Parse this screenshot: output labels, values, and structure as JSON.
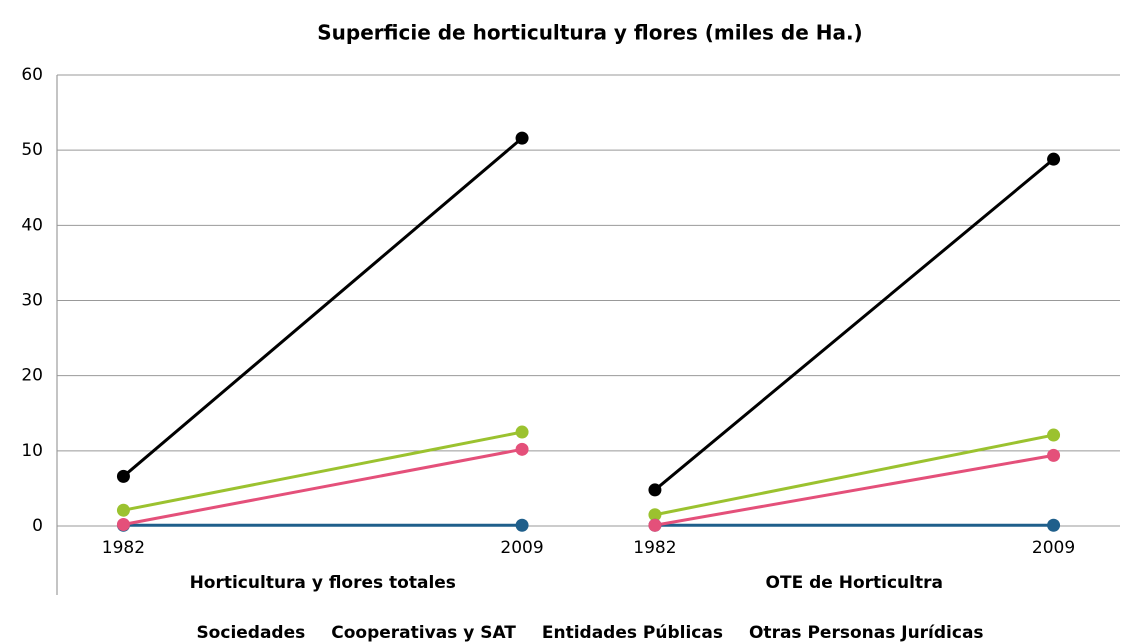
{
  "chart_data": {
    "type": "line",
    "title": "Superficie de horticultura y flores (miles de Ha.)",
    "groups": [
      {
        "label": "Horticultura y flores totales",
        "categories": [
          "1982",
          "2009"
        ]
      },
      {
        "label": "OTE de Horticultra",
        "categories": [
          "1982",
          "2009"
        ]
      }
    ],
    "series": [
      {
        "name": "Sociedades",
        "color": "#000000",
        "values": [
          [
            6.6,
            51.6
          ],
          [
            4.8,
            48.8
          ]
        ]
      },
      {
        "name": "Cooperativas y SAT",
        "color": "#9bc22f",
        "values": [
          [
            2.1,
            12.5
          ],
          [
            1.5,
            12.1
          ]
        ]
      },
      {
        "name": "Entidades Públicas",
        "color": "#1f5f8b",
        "legend_color": "#3d4a9a",
        "values": [
          [
            0.1,
            0.1
          ],
          [
            0.1,
            0.1
          ]
        ]
      },
      {
        "name": "Otras Personas Jurídicas",
        "color": "#e4507a",
        "values": [
          [
            0.2,
            10.2
          ],
          [
            0.1,
            9.4
          ]
        ]
      }
    ],
    "ylim": [
      0,
      60
    ],
    "yticks": [
      0,
      10,
      20,
      30,
      40,
      50,
      60
    ],
    "grid": true
  }
}
